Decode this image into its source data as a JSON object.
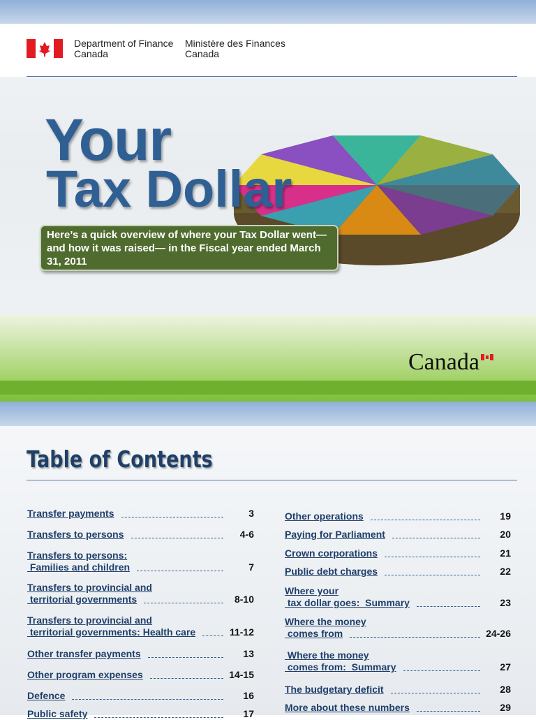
{
  "cover": {
    "dept_en_1": "Department of Finance",
    "dept_en_2": "Canada",
    "dept_fr_1": "Ministère des Finances",
    "dept_fr_2": "Canada",
    "title_1": "Your",
    "title_2": "Tax Dollar",
    "intro": "Here’s a quick overview of where your Tax Dollar went—and how it was raised— in the Fiscal year ended March 31, 2011",
    "wordmark": "Canada"
  },
  "toc": {
    "title": "Table of Contents",
    "left": [
      {
        "lines": [
          "Transfer payments"
        ],
        "page": "3"
      },
      {
        "lines": [
          "Transfers to persons"
        ],
        "page": "4-6"
      },
      {
        "lines": [
          "Transfers to persons:",
          " Families and children"
        ],
        "page": "7"
      },
      {
        "lines": [
          "Transfers to provincial and",
          " territorial governments"
        ],
        "page": "8-10"
      },
      {
        "lines": [
          "Transfers to provincial and",
          " territorial governments: Health care"
        ],
        "page": "11-12"
      },
      {
        "lines": [
          "Other transfer payments"
        ],
        "page": "13"
      },
      {
        "lines": [
          "Other program expenses"
        ],
        "page": "14-15"
      },
      {
        "lines": [
          "Defence"
        ],
        "page": "16"
      },
      {
        "lines": [
          "Public safety"
        ],
        "page": "17"
      }
    ],
    "right": [
      {
        "lines": [
          "Other operations"
        ],
        "page": "19"
      },
      {
        "lines": [
          "Paying for Parliament"
        ],
        "page": "20"
      },
      {
        "lines": [
          "Crown corporations"
        ],
        "page": "21"
      },
      {
        "lines": [
          "Public debt charges"
        ],
        "page": "22"
      },
      {
        "lines": [
          "Where your",
          " tax dollar goes:  Summary"
        ],
        "page": "23"
      },
      {
        "lines": [
          "Where the money",
          " comes from"
        ],
        "page": "24-26"
      },
      {
        "lines": [
          " Where the money",
          " comes from:  Summary"
        ],
        "page": "27"
      },
      {
        "lines": [
          "The budgetary deficit"
        ],
        "page": "28"
      },
      {
        "lines": [
          "More about these numbers"
        ],
        "page": "29"
      }
    ]
  }
}
